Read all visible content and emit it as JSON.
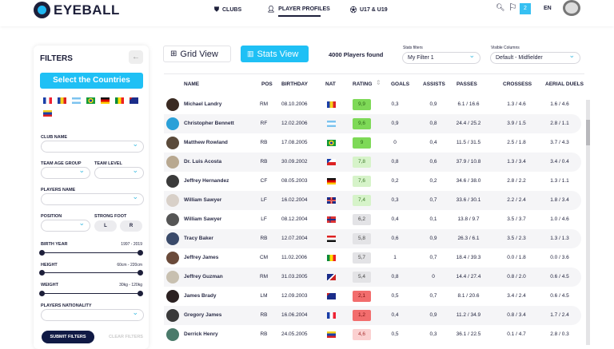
{
  "header": {
    "logo": "EYEBALL",
    "nav": [
      {
        "icon": "shield-icon",
        "label": "CLUBS"
      },
      {
        "icon": "user-icon",
        "label": "PLAYER PROFILES",
        "active": true
      },
      {
        "icon": "ball-icon",
        "label": "U17 & U19"
      }
    ],
    "notifications": "2",
    "language": "EN"
  },
  "filters": {
    "title": "FILTERS",
    "select_countries": "Select the Countries",
    "flags": [
      "France",
      "Romania",
      "Argentina",
      "Brazil",
      "Germany",
      "Senegal",
      "Australia",
      "Venezuela"
    ],
    "club_name": "CLUB NAME",
    "team_age_group": "TEAM AGE GROUP",
    "team_level": "TEAM LEVEL",
    "players_name": "PLAYERS NAME",
    "position": "POSITION",
    "strong_foot": "STRONG FOOT",
    "foot_left": "L",
    "foot_right": "R",
    "birth_year": "BIRTH YEAR",
    "birth_year_range": "1997 - 2019",
    "height": "HEIGHT",
    "height_range": "60cm - 220cm",
    "weight": "WEIGHT",
    "weight_range": "30kg - 120kg",
    "nationality": "PLAYERS NATIONALITY",
    "submit": "SUBMIT FILTERS",
    "clear": "CLEAR FILTERS"
  },
  "toolbar": {
    "grid_view": "Grid View",
    "stats_view": "Stats View",
    "found": "4000 Players found",
    "stats_filters_label": "Stats filters",
    "stats_filter_value": "My Filter 1",
    "visible_columns_label": "Visible Columns",
    "visible_columns_value": "Default - Midfielder"
  },
  "table": {
    "columns": [
      "NAME",
      "POS",
      "BIRTHDAY",
      "NAT",
      "RATING",
      "GOALS",
      "ASSISTS",
      "PASSES",
      "CROSSESS",
      "AERIAL DUELS"
    ],
    "rows": [
      [
        "Michael Landry",
        "RM",
        "08.10.2006",
        "Romania",
        "9,9",
        "0,3",
        "0,9",
        "6.1 / 16.6",
        "1.3 / 4.6",
        "1.6 / 4.6"
      ],
      [
        "Christopher Bennett",
        "RF",
        "12.02.2006",
        "Argentina",
        "9,6",
        "0,9",
        "0,8",
        "24.4 / 25.2",
        "3.9 / 1.5",
        "2.8 / 1.1"
      ],
      [
        "Matthew Rowland",
        "RB",
        "17.08.2005",
        "Brazil",
        "9",
        "0",
        "0,4",
        "11.5 / 31.5",
        "2.5 / 1.8",
        "3.7 / 4.3"
      ],
      [
        "Dr. Luis Acosta",
        "RB",
        "30.09.2002",
        "Czechia",
        "7,8",
        "0,8",
        "0,6",
        "37.9 / 10.8",
        "1.3 / 3.4",
        "3.4 / 0.4"
      ],
      [
        "Jeffrey Hernandez",
        "CF",
        "08.05.2003",
        "Germany",
        "7,6",
        "0,2",
        "0,2",
        "34.6 / 38.0",
        "2.8 / 2.2",
        "1.3 / 1.1"
      ],
      [
        "William Sawyer",
        "LF",
        "16.02.2004",
        "United Kingdom",
        "7,4",
        "0,3",
        "0,7",
        "33.6 / 30.1",
        "2.2 / 2.4",
        "1.8 / 3.4"
      ],
      [
        "William Sawyer",
        "LF",
        "08.12.2004",
        "Norway",
        "6,2",
        "0,4",
        "0,1",
        "13.8 / 9.7",
        "3.5 / 3.7",
        "1.0 / 4.6"
      ],
      [
        "Tracy Baker",
        "RB",
        "12.07.2004",
        "Egypt",
        "5,8",
        "0,6",
        "0,9",
        "26.3 / 6.1",
        "3.5 / 2.3",
        "1.3 / 1.3"
      ],
      [
        "Jeffrey James",
        "CM",
        "11.02.2006",
        "Senegal",
        "5,7",
        "1",
        "0,7",
        "18.4 / 39.3",
        "0.0 / 1.8",
        "0.0 / 3.6"
      ],
      [
        "Jeffrey Guzman",
        "RM",
        "31.03.2005",
        "American Samoa",
        "5,4",
        "0,8",
        "0",
        "14.4 / 27.4",
        "0.8 / 2.0",
        "0.6 / 4.5"
      ],
      [
        "James Brady",
        "LM",
        "12.09.2003",
        "Australia",
        "2,1",
        "0,5",
        "0,7",
        "8.1 / 20.6",
        "3.4 / 2.4",
        "0.6 / 4.5"
      ],
      [
        "Gregory James",
        "RB",
        "16.06.2004",
        "France",
        "1,2",
        "0,4",
        "0,9",
        "11.2 / 34.9",
        "0.8 / 3.4",
        "1.7 / 2.4"
      ],
      [
        "Derrick Henry",
        "RB",
        "24.05.2005",
        "Venezuela",
        "4,6",
        "0,5",
        "0,3",
        "36.1 / 22.5",
        "0.1 / 4.7",
        "2.8 / 0.3"
      ]
    ]
  },
  "colors": {
    "accent": "#1fc0f5",
    "navy": "#101a45",
    "rating_high": "#7ed957",
    "rating_good": "#d6f3c9",
    "rating_mid": "#e3e3e6",
    "rating_low": "#f26d6d",
    "rating_lowish": "#fbd0d0"
  }
}
